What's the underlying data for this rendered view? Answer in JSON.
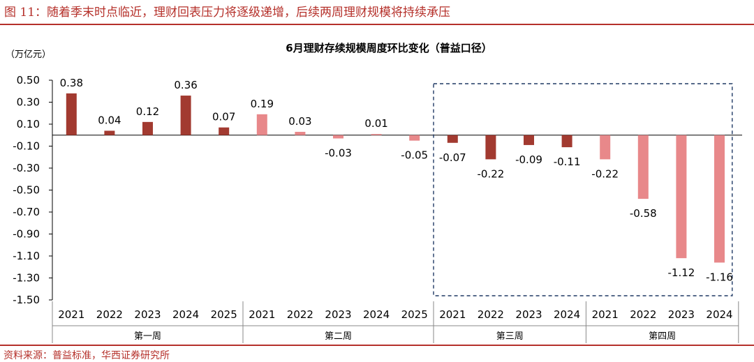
{
  "header": {
    "figure_title": "图 11：随着季末时点临近，理财回表压力将逐级递增，后续两周理财规模将持续承压"
  },
  "footer": {
    "source": "资料来源：普益标准，华西证券研究所"
  },
  "colors": {
    "brand": "#b5302a",
    "dark_bar": "#a23a30",
    "light_bar": "#e8888a",
    "highlight_box": "#1f3864"
  },
  "chart_data": {
    "type": "bar",
    "title": "6月理财存续规模周度环比变化（普益口径）",
    "unit_label": "（万亿元）",
    "ylim": [
      -1.5,
      0.5
    ],
    "yticks": [
      "0.50",
      "0.30",
      "0.10",
      "-0.10",
      "-0.30",
      "-0.50",
      "-0.70",
      "-0.90",
      "-1.10",
      "-1.30",
      "-1.50"
    ],
    "highlight": "dashed box around 第三周 and 第四周",
    "groups": [
      {
        "name": "第一周",
        "bars": [
          {
            "year": "2021",
            "value": 0.38,
            "label": "0.38",
            "shade": "dark"
          },
          {
            "year": "2022",
            "value": 0.04,
            "label": "0.04",
            "shade": "dark"
          },
          {
            "year": "2023",
            "value": 0.12,
            "label": "0.12",
            "shade": "dark"
          },
          {
            "year": "2024",
            "value": 0.36,
            "label": "0.36",
            "shade": "dark"
          },
          {
            "year": "2025",
            "value": 0.07,
            "label": "0.07",
            "shade": "dark"
          }
        ]
      },
      {
        "name": "第二周",
        "bars": [
          {
            "year": "2021",
            "value": 0.19,
            "label": "0.19",
            "shade": "light"
          },
          {
            "year": "2022",
            "value": 0.03,
            "label": "0.03",
            "shade": "light"
          },
          {
            "year": "2023",
            "value": -0.03,
            "label": "-0.03",
            "shade": "light"
          },
          {
            "year": "2024",
            "value": 0.01,
            "label": "0.01",
            "shade": "light"
          },
          {
            "year": "2025",
            "value": -0.05,
            "label": "-0.05",
            "shade": "light"
          }
        ]
      },
      {
        "name": "第三周",
        "bars": [
          {
            "year": "2021",
            "value": -0.07,
            "label": "-0.07",
            "shade": "dark"
          },
          {
            "year": "2022",
            "value": -0.22,
            "label": "-0.22",
            "shade": "dark"
          },
          {
            "year": "2023",
            "value": -0.09,
            "label": "-0.09",
            "shade": "dark"
          },
          {
            "year": "2024",
            "value": -0.11,
            "label": "-0.11",
            "shade": "dark"
          }
        ]
      },
      {
        "name": "第四周",
        "bars": [
          {
            "year": "2021",
            "value": -0.22,
            "label": "-0.22",
            "shade": "light"
          },
          {
            "year": "2022",
            "value": -0.58,
            "label": "-0.58",
            "shade": "light"
          },
          {
            "year": "2023",
            "value": -1.12,
            "label": "-1.12",
            "shade": "light"
          },
          {
            "year": "2024",
            "value": -1.16,
            "label": "-1.16",
            "shade": "light"
          }
        ]
      }
    ]
  }
}
